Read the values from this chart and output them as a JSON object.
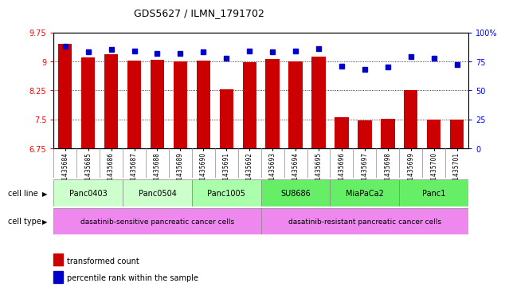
{
  "title": "GDS5627 / ILMN_1791702",
  "samples": [
    "GSM1435684",
    "GSM1435685",
    "GSM1435686",
    "GSM1435687",
    "GSM1435688",
    "GSM1435689",
    "GSM1435690",
    "GSM1435691",
    "GSM1435692",
    "GSM1435693",
    "GSM1435694",
    "GSM1435695",
    "GSM1435696",
    "GSM1435697",
    "GSM1435698",
    "GSM1435699",
    "GSM1435700",
    "GSM1435701"
  ],
  "transformed_count": [
    9.45,
    9.1,
    9.18,
    9.02,
    9.05,
    9.0,
    9.01,
    8.28,
    8.98,
    9.06,
    9.0,
    9.12,
    7.55,
    7.47,
    7.52,
    8.25,
    7.5,
    7.5
  ],
  "percentile_rank": [
    88,
    83,
    85,
    84,
    82,
    82,
    83,
    78,
    84,
    83,
    84,
    86,
    71,
    68,
    70,
    79,
    78,
    72
  ],
  "ylim_left": [
    6.75,
    9.75
  ],
  "ylim_right": [
    0,
    100
  ],
  "yticks_left": [
    6.75,
    7.5,
    8.25,
    9.0,
    9.75
  ],
  "ytick_labels_left": [
    "6.75",
    "7.5",
    "8.25",
    "9",
    "9.75"
  ],
  "yticks_right": [
    0,
    25,
    50,
    75,
    100
  ],
  "ytick_labels_right": [
    "0",
    "25",
    "50",
    "75",
    "100%"
  ],
  "bar_color": "#cc0000",
  "dot_color": "#0000cc",
  "cell_lines": [
    {
      "name": "Panc0403",
      "start": 0,
      "end": 3,
      "color": "#ccffcc"
    },
    {
      "name": "Panc0504",
      "start": 3,
      "end": 6,
      "color": "#ccffcc"
    },
    {
      "name": "Panc1005",
      "start": 6,
      "end": 9,
      "color": "#aaffaa"
    },
    {
      "name": "SU8686",
      "start": 9,
      "end": 12,
      "color": "#66ee66"
    },
    {
      "name": "MiaPaCa2",
      "start": 12,
      "end": 15,
      "color": "#66ee66"
    },
    {
      "name": "Panc1",
      "start": 15,
      "end": 18,
      "color": "#66ee66"
    }
  ],
  "cell_types": [
    {
      "name": "dasatinib-sensitive pancreatic cancer cells",
      "start": 0,
      "end": 9,
      "color": "#ee88ee"
    },
    {
      "name": "dasatinib-resistant pancreatic cancer cells",
      "start": 9,
      "end": 18,
      "color": "#ee88ee"
    }
  ],
  "legend_bar_color": "#cc0000",
  "legend_dot_color": "#0000cc",
  "legend_bar_label": "transformed count",
  "legend_dot_label": "percentile rank within the sample",
  "background_color": "#ffffff",
  "cell_line_row_label": "cell line",
  "cell_type_row_label": "cell type",
  "xlabel_bg": "#cccccc"
}
